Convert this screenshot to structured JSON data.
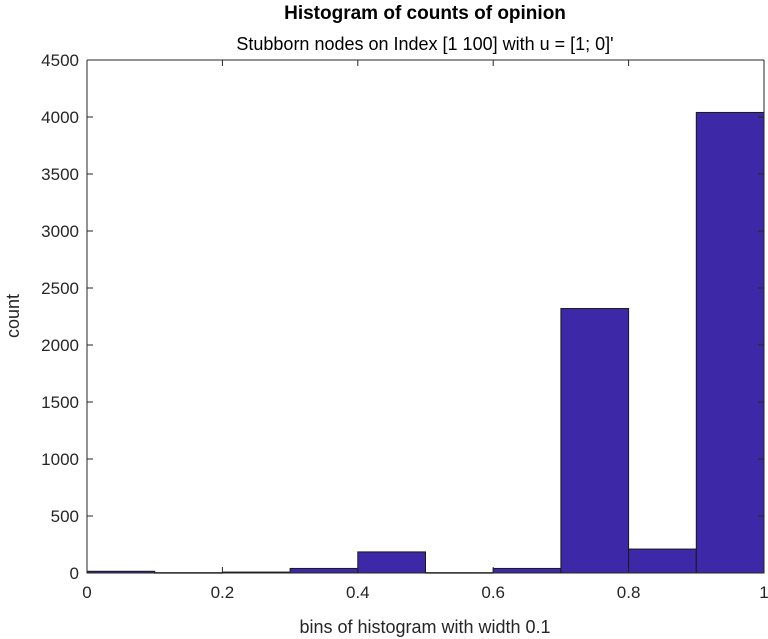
{
  "chart_data": {
    "type": "bar",
    "title": "Histogram of counts of opinion",
    "subtitle": "Stubborn nodes on Index [1 100] with u = [1; 0]'",
    "xlabel": "bins of histogram with width 0.1",
    "ylabel": "count",
    "xlim": [
      0,
      1
    ],
    "ylim": [
      0,
      4500
    ],
    "bin_width": 0.1,
    "bins": [
      {
        "x0": 0.0,
        "x1": 0.1,
        "value": 15
      },
      {
        "x0": 0.1,
        "x1": 0.2,
        "value": 3
      },
      {
        "x0": 0.2,
        "x1": 0.3,
        "value": 8
      },
      {
        "x0": 0.3,
        "x1": 0.4,
        "value": 40
      },
      {
        "x0": 0.4,
        "x1": 0.5,
        "value": 185
      },
      {
        "x0": 0.5,
        "x1": 0.6,
        "value": 3
      },
      {
        "x0": 0.6,
        "x1": 0.7,
        "value": 40
      },
      {
        "x0": 0.7,
        "x1": 0.8,
        "value": 2320
      },
      {
        "x0": 0.8,
        "x1": 0.9,
        "value": 210
      },
      {
        "x0": 0.9,
        "x1": 1.0,
        "value": 4040
      }
    ],
    "x_ticks": [
      {
        "value": 0,
        "label": "0"
      },
      {
        "value": 0.2,
        "label": "0.2"
      },
      {
        "value": 0.4,
        "label": "0.4"
      },
      {
        "value": 0.6,
        "label": "0.6"
      },
      {
        "value": 0.8,
        "label": "0.8"
      },
      {
        "value": 1,
        "label": "1"
      }
    ],
    "y_ticks": [
      {
        "value": 0,
        "label": "0"
      },
      {
        "value": 500,
        "label": "500"
      },
      {
        "value": 1000,
        "label": "1000"
      },
      {
        "value": 1500,
        "label": "1500"
      },
      {
        "value": 2000,
        "label": "2000"
      },
      {
        "value": 2500,
        "label": "2500"
      },
      {
        "value": 3000,
        "label": "3000"
      },
      {
        "value": 3500,
        "label": "3500"
      },
      {
        "value": 4000,
        "label": "4000"
      },
      {
        "value": 4500,
        "label": "4500"
      }
    ],
    "grid": false,
    "legend": "none",
    "colors": {
      "bar_fill": "#3d28a8",
      "bar_edge": "#1a1a1a",
      "axis": "#262626"
    }
  }
}
